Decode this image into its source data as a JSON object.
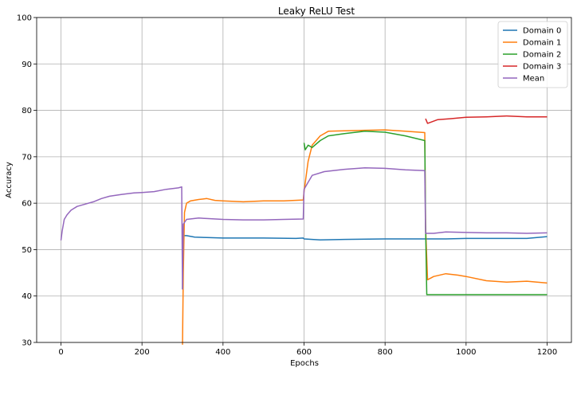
{
  "chart_data": {
    "type": "line",
    "title": "Leaky ReLU Test",
    "xlabel": "Epochs",
    "ylabel": "Accuracy",
    "xlim": [
      -60,
      1260
    ],
    "ylim": [
      30,
      100
    ],
    "xticks": [
      0,
      200,
      400,
      600,
      800,
      1000,
      1200
    ],
    "yticks": [
      30,
      40,
      50,
      60,
      70,
      80,
      90,
      100
    ],
    "grid": true,
    "legend": "top-right",
    "series": [
      {
        "name": "Domain 0",
        "color": "#1f77b4",
        "points": [
          [
            300,
            41.5
          ],
          [
            302,
            53.0
          ],
          [
            310,
            53.0
          ],
          [
            330,
            52.7
          ],
          [
            360,
            52.6
          ],
          [
            400,
            52.5
          ],
          [
            500,
            52.5
          ],
          [
            580,
            52.4
          ],
          [
            598,
            52.5
          ],
          [
            600,
            52.3
          ],
          [
            640,
            52.1
          ],
          [
            700,
            52.2
          ],
          [
            800,
            52.3
          ],
          [
            898,
            52.3
          ],
          [
            900,
            52.3
          ],
          [
            950,
            52.3
          ],
          [
            1000,
            52.4
          ],
          [
            1100,
            52.4
          ],
          [
            1150,
            52.4
          ],
          [
            1200,
            52.8
          ]
        ]
      },
      {
        "name": "Domain 1",
        "color": "#ff7f0e",
        "points": [
          [
            300,
            29.5
          ],
          [
            302,
            45.0
          ],
          [
            305,
            58.0
          ],
          [
            310,
            60.0
          ],
          [
            320,
            60.5
          ],
          [
            340,
            60.8
          ],
          [
            360,
            61.0
          ],
          [
            380,
            60.6
          ],
          [
            400,
            60.5
          ],
          [
            450,
            60.3
          ],
          [
            500,
            60.5
          ],
          [
            550,
            60.5
          ],
          [
            598,
            60.7
          ],
          [
            600,
            62.5
          ],
          [
            610,
            69.0
          ],
          [
            620,
            72.5
          ],
          [
            640,
            74.5
          ],
          [
            660,
            75.5
          ],
          [
            700,
            75.6
          ],
          [
            750,
            75.7
          ],
          [
            800,
            75.8
          ],
          [
            850,
            75.5
          ],
          [
            898,
            75.2
          ],
          [
            900,
            55.0
          ],
          [
            905,
            43.5
          ],
          [
            920,
            44.2
          ],
          [
            950,
            44.8
          ],
          [
            980,
            44.5
          ],
          [
            1000,
            44.2
          ],
          [
            1050,
            43.3
          ],
          [
            1100,
            43.0
          ],
          [
            1150,
            43.2
          ],
          [
            1200,
            42.8
          ]
        ]
      },
      {
        "name": "Domain 2",
        "color": "#2ca02c",
        "points": [
          [
            600,
            73.0
          ],
          [
            603,
            71.5
          ],
          [
            610,
            72.5
          ],
          [
            620,
            72.0
          ],
          [
            640,
            73.5
          ],
          [
            660,
            74.5
          ],
          [
            700,
            75.0
          ],
          [
            750,
            75.5
          ],
          [
            800,
            75.3
          ],
          [
            850,
            74.5
          ],
          [
            898,
            73.5
          ],
          [
            900,
            55.0
          ],
          [
            903,
            40.3
          ],
          [
            950,
            40.3
          ],
          [
            1000,
            40.3
          ],
          [
            1100,
            40.3
          ],
          [
            1200,
            40.3
          ]
        ]
      },
      {
        "name": "Domain 3",
        "color": "#d62728",
        "points": [
          [
            900,
            78.2
          ],
          [
            905,
            77.2
          ],
          [
            915,
            77.5
          ],
          [
            930,
            78.0
          ],
          [
            960,
            78.2
          ],
          [
            1000,
            78.5
          ],
          [
            1050,
            78.6
          ],
          [
            1100,
            78.8
          ],
          [
            1150,
            78.6
          ],
          [
            1200,
            78.6
          ]
        ]
      },
      {
        "name": "Mean",
        "color": "#9467bd",
        "points": [
          [
            0,
            52.0
          ],
          [
            3,
            54.0
          ],
          [
            8,
            56.5
          ],
          [
            15,
            57.5
          ],
          [
            25,
            58.5
          ],
          [
            40,
            59.3
          ],
          [
            60,
            59.8
          ],
          [
            80,
            60.3
          ],
          [
            100,
            61.0
          ],
          [
            120,
            61.5
          ],
          [
            150,
            61.9
          ],
          [
            180,
            62.2
          ],
          [
            200,
            62.3
          ],
          [
            230,
            62.5
          ],
          [
            260,
            63.0
          ],
          [
            290,
            63.3
          ],
          [
            298,
            63.5
          ],
          [
            300,
            41.5
          ],
          [
            302,
            55.5
          ],
          [
            310,
            56.5
          ],
          [
            340,
            56.8
          ],
          [
            360,
            56.7
          ],
          [
            400,
            56.5
          ],
          [
            450,
            56.4
          ],
          [
            500,
            56.4
          ],
          [
            550,
            56.5
          ],
          [
            598,
            56.6
          ],
          [
            600,
            63.0
          ],
          [
            610,
            64.5
          ],
          [
            620,
            66.0
          ],
          [
            650,
            66.8
          ],
          [
            700,
            67.3
          ],
          [
            750,
            67.6
          ],
          [
            800,
            67.5
          ],
          [
            850,
            67.2
          ],
          [
            898,
            67.0
          ],
          [
            900,
            53.5
          ],
          [
            920,
            53.5
          ],
          [
            950,
            53.8
          ],
          [
            1000,
            53.7
          ],
          [
            1050,
            53.6
          ],
          [
            1100,
            53.6
          ],
          [
            1150,
            53.5
          ],
          [
            1200,
            53.6
          ]
        ]
      }
    ]
  }
}
